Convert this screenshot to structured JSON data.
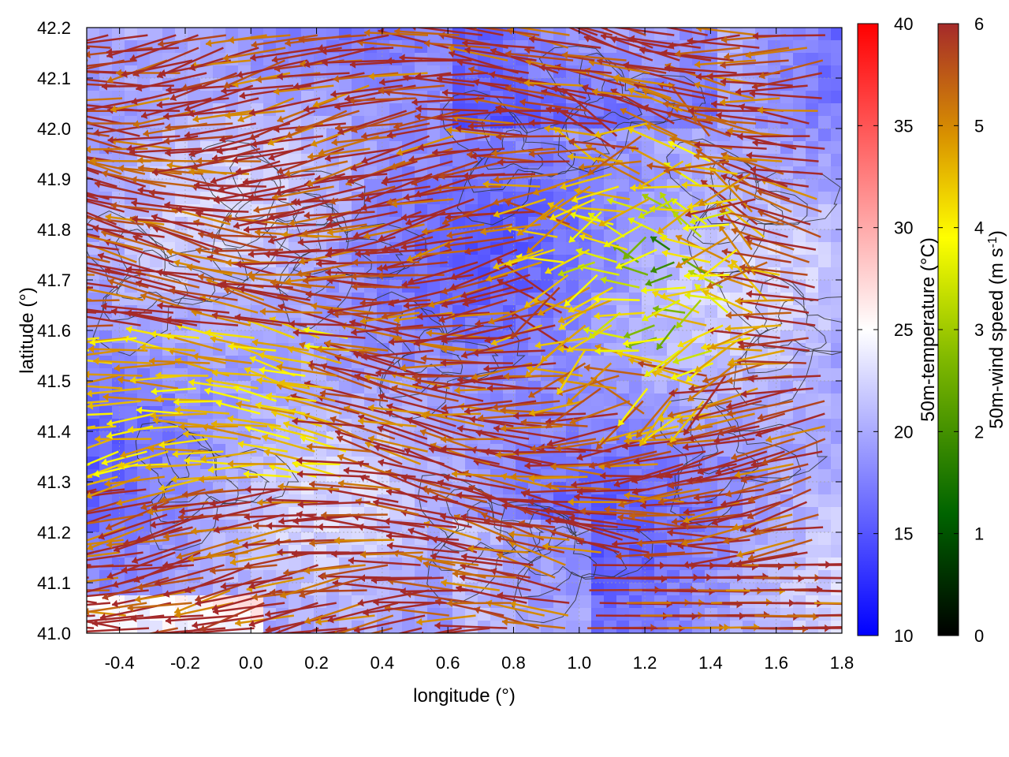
{
  "chart_data": {
    "type": "vector-field-heatmap",
    "xlabel": "longitude (°)",
    "ylabel": "latitude (°)",
    "xlim": [
      -0.5,
      1.8
    ],
    "ylim": [
      41.0,
      42.2
    ],
    "x_ticks": [
      -0.4,
      -0.2,
      0.0,
      0.2,
      0.4,
      0.6,
      0.8,
      1.0,
      1.2,
      1.4,
      1.6,
      1.8
    ],
    "x_tick_labels": [
      "-0.4",
      "-0.2",
      "0.0",
      "0.2",
      "0.4",
      "0.6",
      "0.8",
      "1.0",
      "1.2",
      "1.4",
      "1.6",
      "1.8"
    ],
    "y_ticks": [
      41.0,
      41.1,
      41.2,
      41.3,
      41.4,
      41.5,
      41.6,
      41.7,
      41.8,
      41.9,
      42.0,
      42.1,
      42.2
    ],
    "y_tick_labels": [
      "41.0",
      "41.1",
      "41.2",
      "41.3",
      "41.4",
      "41.5",
      "41.6",
      "41.7",
      "41.8",
      "41.9",
      "42.0",
      "42.1",
      "42.2"
    ],
    "grid": true,
    "heatmap": {
      "variable_label": "50m-temperature (°C)",
      "range": [
        10,
        40
      ],
      "colorbar_ticks": [
        "10",
        "15",
        "20",
        "25",
        "30",
        "35",
        "40"
      ],
      "colormap": [
        "#0000ff",
        "#ffffff",
        "#ff0000"
      ],
      "dominant_range": [
        16,
        22
      ]
    },
    "vectors": {
      "variable_label_main": "50m-wind speed (m s",
      "variable_label_sup": "-1",
      "variable_label_end": ")",
      "range": [
        0,
        6
      ],
      "colorbar_ticks": [
        "0",
        "1",
        "2",
        "3",
        "4",
        "5",
        "6"
      ],
      "colormap": [
        "#000000",
        "#006400",
        "#7fb800",
        "#ffff00",
        "#d89000",
        "#a52a2a"
      ],
      "prevailing_direction": "from east (westward flow)",
      "calm_zone_center": [
        1.25,
        41.72
      ]
    },
    "contours": {
      "color": "#333333",
      "description_visible": "terrain elevation contour lines"
    }
  }
}
